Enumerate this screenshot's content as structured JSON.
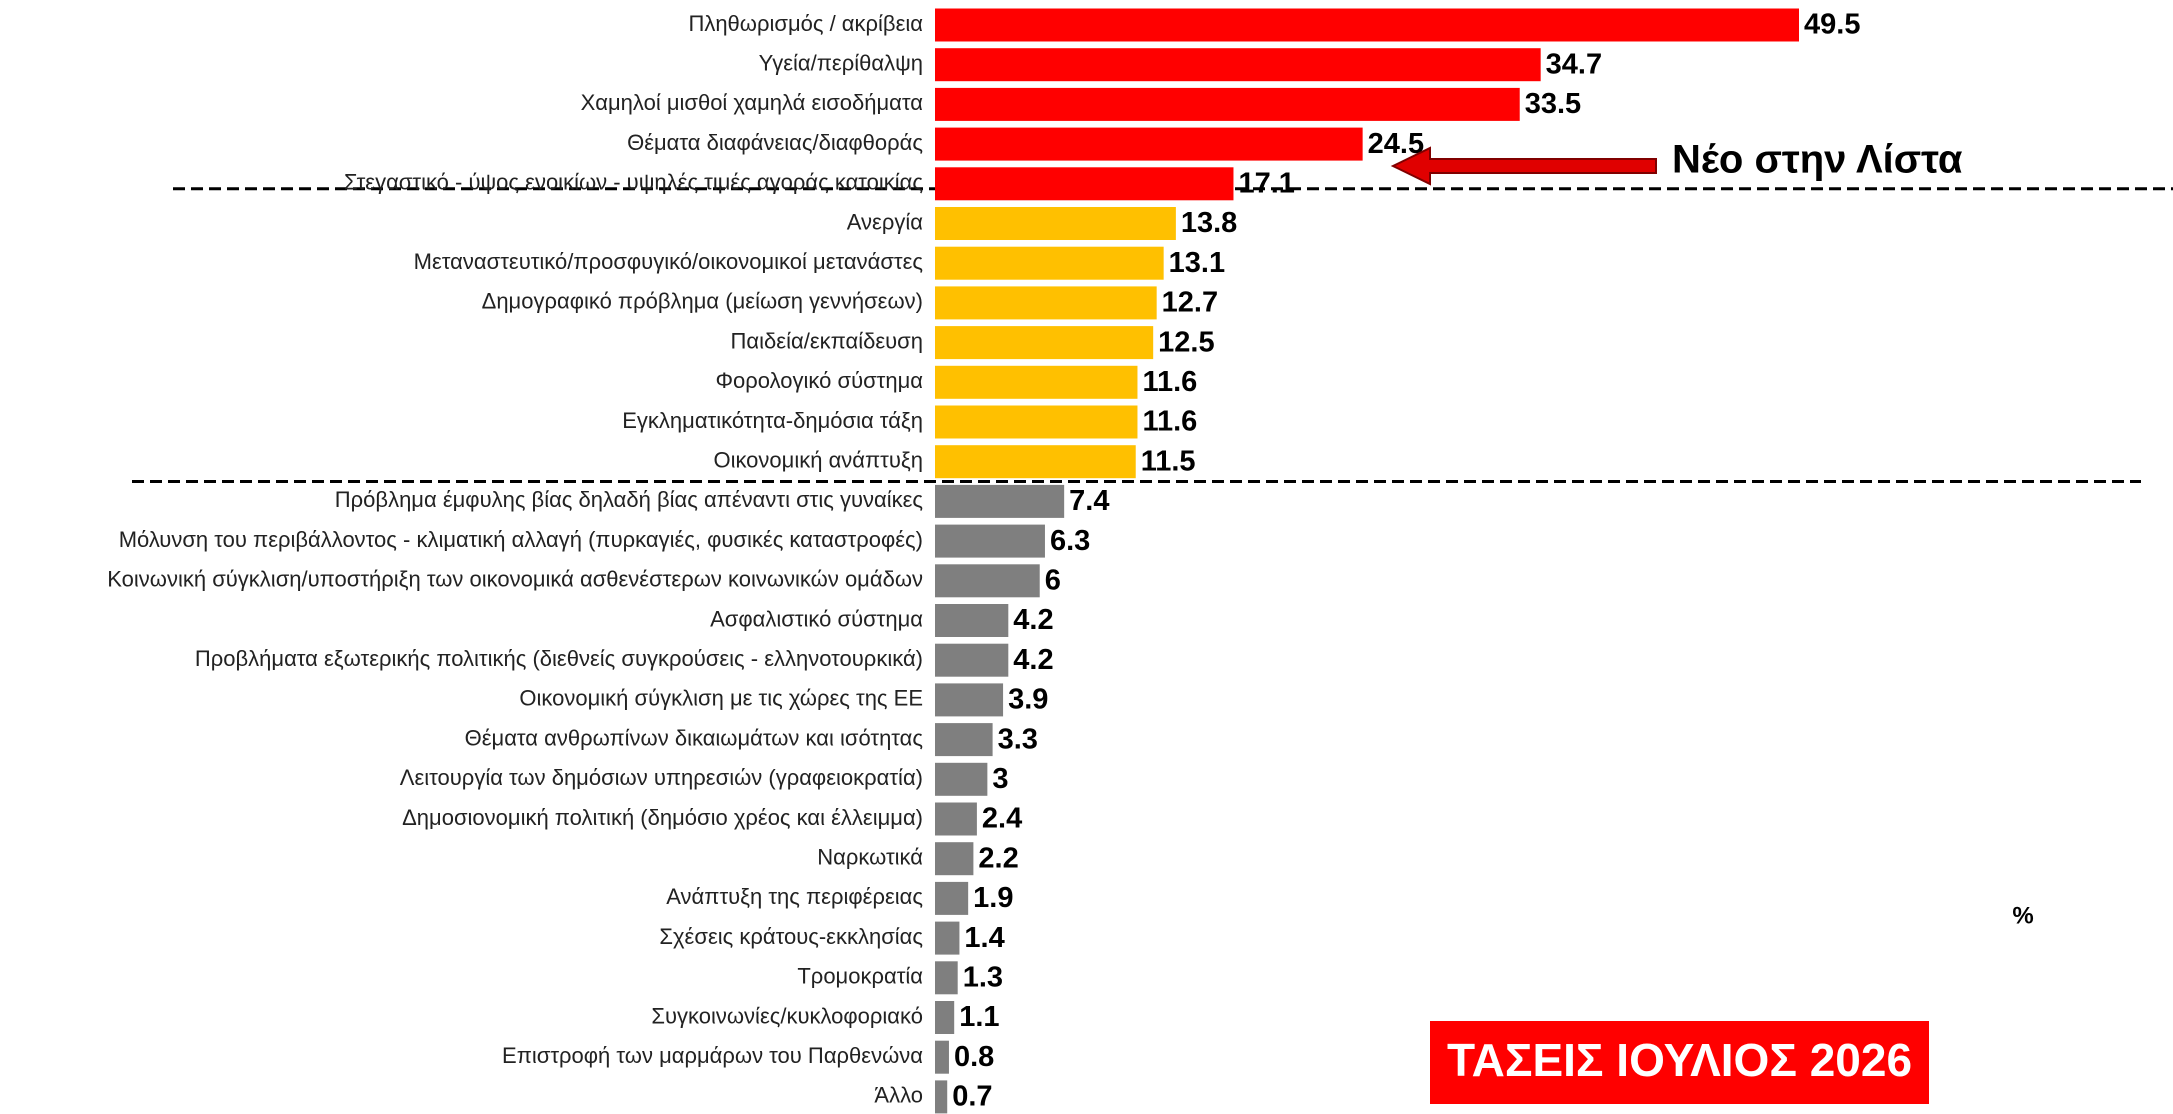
{
  "chart_data": {
    "type": "bar",
    "orientation": "horizontal",
    "categories": [
      "Πληθωρισμός / ακρίβεια",
      "Υγεία/περίθαλψη",
      "Χαμηλοί μισθοί χαμηλά εισοδήματα",
      "Θέματα διαφάνειας/διαφθοράς",
      "Στεγαστικό - ύψος ενοικίων - υψηλές τιμές αγοράς κατοικίας",
      "Ανεργία",
      "Μεταναστευτικό/προσφυγικό/οικονομικοί μετανάστες",
      "Δημογραφικό πρόβλημα (μείωση γεννήσεων)",
      "Παιδεία/εκπαίδευση",
      "Φορολογικό σύστημα",
      "Εγκληματικότητα-δημόσια τάξη",
      "Οικονομική ανάπτυξη",
      "Πρόβλημα έμφυλης βίας δηλαδή βίας απέναντι στις γυναίκες",
      "Μόλυνση του περιβάλλοντος - κλιματική αλλαγή (πυρκαγιές, φυσικές καταστροφές)",
      "Κοινωνική σύγκλιση/υποστήριξη των οικονομικά ασθενέστερων κοινωνικών ομάδων",
      "Ασφαλιστικό σύστημα",
      "Προβλήματα εξωτερικής πολιτικής (διεθνείς συγκρούσεις - ελληνοτουρκικά)",
      "Οικονομική σύγκλιση με τις χώρες της ΕΕ",
      "Θέματα ανθρωπίνων δικαιωμάτων και ισότητας",
      "Λειτουργία των δημόσιων υπηρεσιών (γραφειοκρατία)",
      "Δημοσιονομική πολιτική (δημόσιο χρέος και έλλειμμα)",
      "Ναρκωτικά",
      "Ανάπτυξη της περιφέρειας",
      "Σχέσεις κράτους-εκκλησίας",
      "Τρομοκρατία",
      "Συγκοινωνίες/κυκλοφοριακό",
      "Επιστροφή των μαρμάρων του Παρθενώνα",
      "Άλλο"
    ],
    "values": [
      49.5,
      34.7,
      33.5,
      24.5,
      17.1,
      13.8,
      13.1,
      12.7,
      12.5,
      11.6,
      11.6,
      11.5,
      7.4,
      6.3,
      6,
      4.2,
      4.2,
      3.9,
      3.3,
      3,
      2.4,
      2.2,
      1.9,
      1.4,
      1.3,
      1.1,
      0.8,
      0.7
    ],
    "colors": [
      "#ff0000",
      "#ff0000",
      "#ff0000",
      "#ff0000",
      "#ff0000",
      "#ffc000",
      "#ffc000",
      "#ffc000",
      "#ffc000",
      "#ffc000",
      "#ffc000",
      "#ffc000",
      "#7f7f7f",
      "#7f7f7f",
      "#7f7f7f",
      "#7f7f7f",
      "#7f7f7f",
      "#7f7f7f",
      "#7f7f7f",
      "#7f7f7f",
      "#7f7f7f",
      "#7f7f7f",
      "#7f7f7f",
      "#7f7f7f",
      "#7f7f7f",
      "#7f7f7f",
      "#7f7f7f",
      "#7f7f7f"
    ],
    "annotations": [
      "Νέο στην Λίστα",
      "%",
      "ΤΑΣΕΙΣ ΙΟΥΛΙΟΣ 2026"
    ]
  }
}
